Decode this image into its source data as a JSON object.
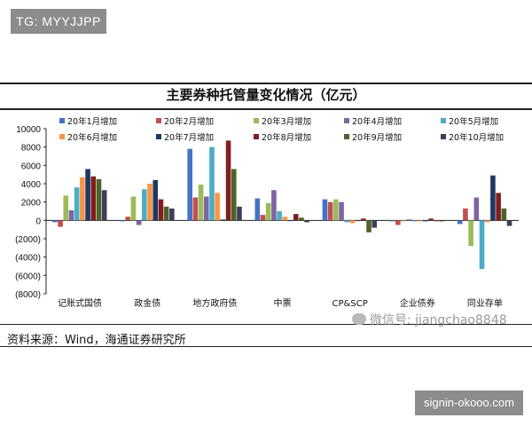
{
  "watermark_top": "TG: MYYJJPP",
  "watermark_bottom": "signin-okooo.com",
  "wechat_watermark": "微信号: jiangchao8848",
  "source": "资料来源：Wind，海通证券研究所",
  "chart_data": {
    "type": "bar",
    "title": "主要券种托管量变化情况（亿元）",
    "xlabel": "",
    "ylabel": "",
    "ylim": [
      -8000,
      10000
    ],
    "yticks": [
      "10000",
      "8000",
      "6000",
      "4000",
      "2000",
      "0",
      "(2000)",
      "(4000)",
      "(6000)",
      "(8000)"
    ],
    "categories": [
      "记账式国债",
      "政金债",
      "地方政府债",
      "中票",
      "CP&SCP",
      "企业债券",
      "同业存单"
    ],
    "legend_position": "top",
    "grid": false,
    "series": [
      {
        "name": "20年1月增加",
        "color": "#4472c4",
        "values": [
          -200,
          -100,
          7800,
          2400,
          2300,
          -100,
          -400
        ]
      },
      {
        "name": "20年2月增加",
        "color": "#c0504d",
        "values": [
          -700,
          400,
          2500,
          600,
          2000,
          -500,
          1300
        ]
      },
      {
        "name": "20年3月增加",
        "color": "#9bbb59",
        "values": [
          2700,
          2600,
          3900,
          1900,
          2300,
          -100,
          -2800
        ]
      },
      {
        "name": "20年4月增加",
        "color": "#8064a2",
        "values": [
          1100,
          -500,
          2600,
          3300,
          2000,
          100,
          2500
        ]
      },
      {
        "name": "20年5月增加",
        "color": "#4bacc6",
        "values": [
          3600,
          3400,
          8000,
          1000,
          -200,
          -100,
          -5300
        ]
      },
      {
        "name": "20年6月增加",
        "color": "#f79646",
        "values": [
          4700,
          4000,
          3000,
          400,
          -300,
          -100,
          -200
        ]
      },
      {
        "name": "20年7月增加",
        "color": "#1f3864",
        "values": [
          5600,
          4400,
          100,
          0,
          0,
          -100,
          4900
        ]
      },
      {
        "name": "20年8月增加",
        "color": "#7f1f1f",
        "values": [
          4800,
          2300,
          8700,
          700,
          200,
          200,
          3000
        ]
      },
      {
        "name": "20年9月增加",
        "color": "#4f6228",
        "values": [
          4500,
          1500,
          5600,
          300,
          -1300,
          -100,
          1300
        ]
      },
      {
        "name": "20年10月增加",
        "color": "#3d3d5c",
        "values": [
          3300,
          1300,
          1500,
          -200,
          -800,
          -100,
          -600
        ]
      }
    ]
  }
}
